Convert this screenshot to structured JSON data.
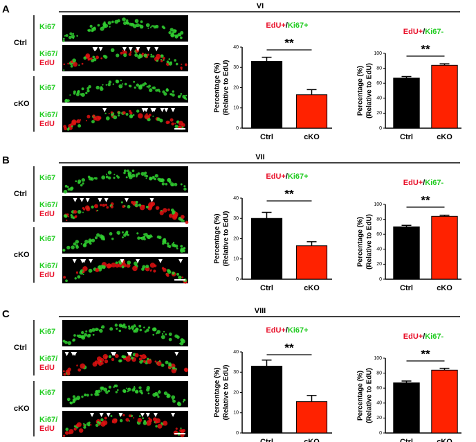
{
  "panels": [
    {
      "label": "A",
      "region": "VI",
      "groups": [
        {
          "name": "Ctrl",
          "labels": [
            "Ki67",
            "Ki67/",
            "EdU"
          ]
        },
        {
          "name": "cKO",
          "labels": [
            "Ki67",
            "Ki67/",
            "EdU"
          ]
        }
      ]
    },
    {
      "label": "B",
      "region": "VII",
      "groups": [
        {
          "name": "Ctrl",
          "labels": [
            "Ki67",
            "Ki67/",
            "EdU"
          ]
        },
        {
          "name": "cKO",
          "labels": [
            "Ki67",
            "Ki67/",
            "EdU"
          ]
        }
      ]
    },
    {
      "label": "C",
      "region": "VIII",
      "groups": [
        {
          "name": "Ctrl",
          "labels": [
            "Ki67",
            "Ki67/",
            "EdU"
          ]
        },
        {
          "name": "cKO",
          "labels": [
            "Ki67",
            "Ki67/",
            "EdU"
          ]
        }
      ]
    }
  ],
  "chart_data": [
    {
      "type": "bar",
      "title": [
        "EdU+",
        "/",
        "Ki67+"
      ],
      "title_colors": [
        "#e8102a",
        "#000000",
        "#22cc22"
      ],
      "ylabel": [
        "Percentage (%)",
        "(Relative to EdU)"
      ],
      "categories": [
        "Ctrl",
        "cKO"
      ],
      "values": [
        33,
        16.5
      ],
      "errors": [
        2,
        2.5
      ],
      "colors": [
        "#000000",
        "#ff2200"
      ],
      "ylim": [
        0,
        40
      ],
      "yticks": [
        0,
        10,
        20,
        30,
        40
      ],
      "significance": "**"
    },
    {
      "type": "bar",
      "title": [
        "EdU+",
        "/",
        "Ki67-"
      ],
      "title_colors": [
        "#e8102a",
        "#000000",
        "#22cc22"
      ],
      "ylabel": [
        "Percentage (%)",
        "(Relative to EdU)"
      ],
      "categories": [
        "Ctrl",
        "cKO"
      ],
      "values": [
        67,
        84
      ],
      "errors": [
        2,
        2
      ],
      "colors": [
        "#000000",
        "#ff2200"
      ],
      "ylim": [
        0,
        100
      ],
      "yticks": [
        0,
        20,
        40,
        60,
        80,
        100
      ],
      "significance": "**"
    },
    {
      "type": "bar",
      "title": [
        "EdU+",
        "/",
        "Ki67+"
      ],
      "title_colors": [
        "#e8102a",
        "#000000",
        "#22cc22"
      ],
      "ylabel": [
        "Percentage (%)",
        "(Relative to EdU)"
      ],
      "categories": [
        "Ctrl",
        "cKO"
      ],
      "values": [
        30,
        16.5
      ],
      "errors": [
        3,
        2
      ],
      "colors": [
        "#000000",
        "#ff2200"
      ],
      "ylim": [
        0,
        40
      ],
      "yticks": [
        0,
        10,
        20,
        30,
        40
      ],
      "significance": "**"
    },
    {
      "type": "bar",
      "title": [
        "EdU+",
        "/",
        "Ki67-"
      ],
      "title_colors": [
        "#e8102a",
        "#000000",
        "#22cc22"
      ],
      "ylabel": [
        "Percentage (%)",
        "(Relative to EdU)"
      ],
      "categories": [
        "Ctrl",
        "cKO"
      ],
      "values": [
        70,
        84
      ],
      "errors": [
        2,
        1.5
      ],
      "colors": [
        "#000000",
        "#ff2200"
      ],
      "ylim": [
        0,
        100
      ],
      "yticks": [
        0,
        20,
        40,
        60,
        80,
        100
      ],
      "significance": "**"
    },
    {
      "type": "bar",
      "title": [
        "EdU+",
        "/",
        "Ki67+"
      ],
      "title_colors": [
        "#e8102a",
        "#000000",
        "#22cc22"
      ],
      "ylabel": [
        "Percentage (%)",
        "(Relative to EdU)"
      ],
      "categories": [
        "Ctrl",
        "cKO"
      ],
      "values": [
        33,
        15.5
      ],
      "errors": [
        3,
        3
      ],
      "colors": [
        "#000000",
        "#ff2200"
      ],
      "ylim": [
        0,
        40
      ],
      "yticks": [
        0,
        10,
        20,
        30,
        40
      ],
      "significance": "**"
    },
    {
      "type": "bar",
      "title": [
        "EdU+",
        "/",
        "Ki67-"
      ],
      "title_colors": [
        "#e8102a",
        "#000000",
        "#22cc22"
      ],
      "ylabel": [
        "Percentage (%)",
        "(Relative to EdU)"
      ],
      "categories": [
        "Ctrl",
        "cKO"
      ],
      "values": [
        67,
        84
      ],
      "errors": [
        2.5,
        2.5
      ],
      "colors": [
        "#000000",
        "#ff2200"
      ],
      "ylim": [
        0,
        100
      ],
      "yticks": [
        0,
        20,
        40,
        60,
        80,
        100
      ],
      "significance": "**"
    }
  ]
}
